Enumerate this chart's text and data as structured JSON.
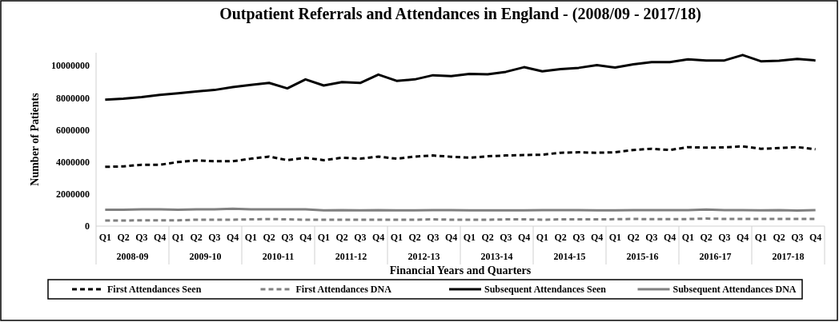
{
  "chart_data": {
    "type": "line",
    "title": "Outpatient Referrals and Attendances in England - (2008/09 - 2017/18)",
    "xlabel": "Financial Years and Quarters",
    "ylabel": "Number of Patients",
    "categories": [
      "Q1",
      "Q2",
      "Q3",
      "Q4",
      "Q1",
      "Q2",
      "Q3",
      "Q4",
      "Q1",
      "Q2",
      "Q3",
      "Q4",
      "Q1",
      "Q2",
      "Q3",
      "Q4",
      "Q1",
      "Q2",
      "Q3",
      "Q4",
      "Q1",
      "Q2",
      "Q3",
      "Q4",
      "Q1",
      "Q2",
      "Q3",
      "Q4",
      "Q1",
      "Q2",
      "Q3",
      "Q4",
      "Q1",
      "Q2",
      "Q3",
      "Q4",
      "Q1",
      "Q2",
      "Q3",
      "Q4"
    ],
    "annotations": [
      "2008-09",
      "2009-10",
      "2010-11",
      "2011-12",
      "2012-13",
      "2013-14",
      "2014-15",
      "2015-16",
      "2016-17",
      "2017-18"
    ],
    "ylim": [
      0,
      10800000
    ],
    "yticks": [
      0,
      2000000,
      4000000,
      6000000,
      8000000,
      10000000
    ],
    "grid": false,
    "legend": "bottom",
    "marker": "none",
    "series": [
      {
        "name": "First Attendances Seen",
        "color": "#000000",
        "line_style": "dashed",
        "values": [
          3690000,
          3720000,
          3820000,
          3820000,
          3990000,
          4090000,
          4040000,
          4040000,
          4200000,
          4330000,
          4110000,
          4250000,
          4110000,
          4260000,
          4200000,
          4330000,
          4200000,
          4330000,
          4400000,
          4320000,
          4260000,
          4350000,
          4400000,
          4430000,
          4450000,
          4570000,
          4600000,
          4570000,
          4600000,
          4740000,
          4820000,
          4740000,
          4920000,
          4890000,
          4900000,
          4970000,
          4820000,
          4860000,
          4920000,
          4790000
        ]
      },
      {
        "name": "First Attendances DNA",
        "color": "#808080",
        "line_style": "dashed",
        "values": [
          350000,
          350000,
          360000,
          360000,
          360000,
          400000,
          400000,
          400000,
          420000,
          440000,
          420000,
          400000,
          400000,
          400000,
          400000,
          400000,
          400000,
          400000,
          420000,
          400000,
          400000,
          400000,
          420000,
          420000,
          400000,
          420000,
          420000,
          420000,
          430000,
          450000,
          430000,
          430000,
          440000,
          470000,
          450000,
          450000,
          450000,
          450000,
          450000,
          450000
        ]
      },
      {
        "name": "Subsequent Attendances Seen",
        "color": "#000000",
        "line_style": "solid",
        "values": [
          7880000,
          7940000,
          8040000,
          8170000,
          8270000,
          8390000,
          8480000,
          8660000,
          8800000,
          8920000,
          8580000,
          9140000,
          8760000,
          8970000,
          8920000,
          9440000,
          9050000,
          9140000,
          9400000,
          9340000,
          9480000,
          9460000,
          9610000,
          9900000,
          9640000,
          9780000,
          9860000,
          10030000,
          9880000,
          10080000,
          10220000,
          10220000,
          10390000,
          10320000,
          10320000,
          10660000,
          10270000,
          10300000,
          10420000,
          10320000
        ]
      },
      {
        "name": "Subsequent Attendances DNA",
        "color": "#808080",
        "line_style": "solid",
        "values": [
          1020000,
          1020000,
          1050000,
          1050000,
          1020000,
          1050000,
          1050000,
          1080000,
          1050000,
          1050000,
          1050000,
          1050000,
          980000,
          1000000,
          980000,
          1000000,
          980000,
          980000,
          1000000,
          1000000,
          980000,
          980000,
          980000,
          980000,
          1000000,
          1000000,
          1000000,
          980000,
          980000,
          1000000,
          1000000,
          1000000,
          1000000,
          1030000,
          1000000,
          1000000,
          980000,
          1000000,
          970000,
          1000000
        ]
      }
    ]
  }
}
